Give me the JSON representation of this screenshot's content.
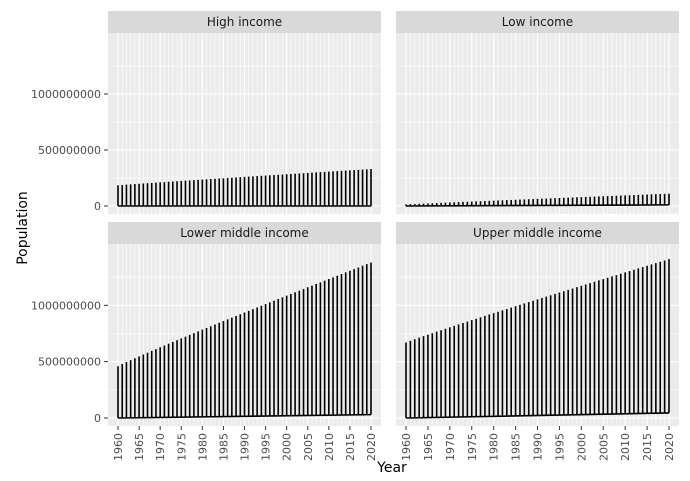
{
  "chart_data": {
    "type": "bar",
    "xlabel": "Year",
    "ylabel": "Population",
    "ylim": [
      0,
      1500000000
    ],
    "yticks": [
      0,
      500000000,
      1000000000
    ],
    "ytick_labels": [
      "0",
      "500000000",
      "1000000000"
    ],
    "xticks": [
      1960,
      1965,
      1970,
      1975,
      1980,
      1985,
      1990,
      1995,
      2000,
      2005,
      2010,
      2015,
      2020
    ],
    "xtick_labels": [
      "1960",
      "1965",
      "1970",
      "1975",
      "1980",
      "1985",
      "1990",
      "1995",
      "2000",
      "2005",
      "2010",
      "2015",
      "2020"
    ],
    "x_range": [
      1960,
      2020
    ],
    "grid": true,
    "mark": "vertical segment from low to high for each year",
    "panels": [
      {
        "name": "High income",
        "year_start": 1960,
        "year_end": 2020,
        "high": [
          185000000,
          330000000
        ],
        "low": [
          0,
          0
        ]
      },
      {
        "name": "Low income",
        "year_start": 1960,
        "year_end": 2020,
        "high": [
          14000000,
          110000000
        ],
        "low": [
          0,
          10000000
        ]
      },
      {
        "name": "Lower middle income",
        "year_start": 1960,
        "year_end": 2020,
        "high": [
          460000000,
          1380000000
        ],
        "low": [
          0,
          30000000
        ]
      },
      {
        "name": "Upper middle income",
        "year_start": 1960,
        "year_end": 2020,
        "high": [
          670000000,
          1410000000
        ],
        "low": [
          0,
          45000000
        ]
      }
    ]
  }
}
